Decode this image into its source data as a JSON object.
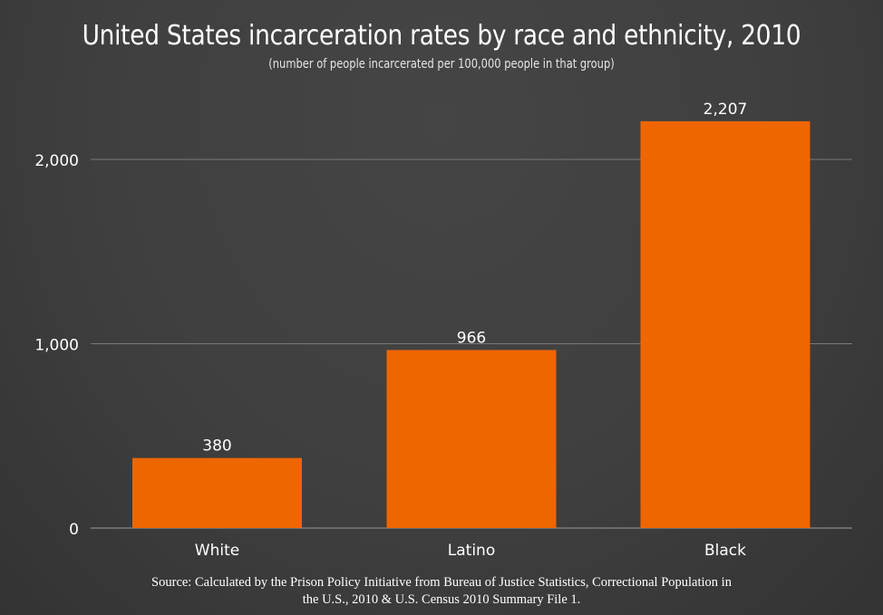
{
  "colors": {
    "bar": "#ee6600",
    "gridline": "#7a7a7a",
    "text": "#ffffff"
  },
  "chart_data": {
    "type": "bar",
    "title": "United States incarceration rates by race and ethnicity, 2010",
    "subtitle": "(number of people incarcerated per 100,000 people in that group)",
    "xlabel": "",
    "ylabel": "",
    "categories": [
      "White",
      "Latino",
      "Black"
    ],
    "values": [
      380,
      966,
      2207
    ],
    "value_labels": [
      "380",
      "966",
      "2,207"
    ],
    "ylim": [
      0,
      2000
    ],
    "yticks": [
      0,
      1000,
      2000
    ],
    "ytick_labels": [
      "0",
      "1,000",
      "2,000"
    ],
    "grid": true,
    "legend": "none"
  },
  "source": {
    "line1": "Source: Calculated by the Prison Policy Initiative from Bureau of Justice Statistics, Correctional Population in",
    "line2": "the U.S., 2010 & U.S. Census 2010 Summary File 1."
  }
}
